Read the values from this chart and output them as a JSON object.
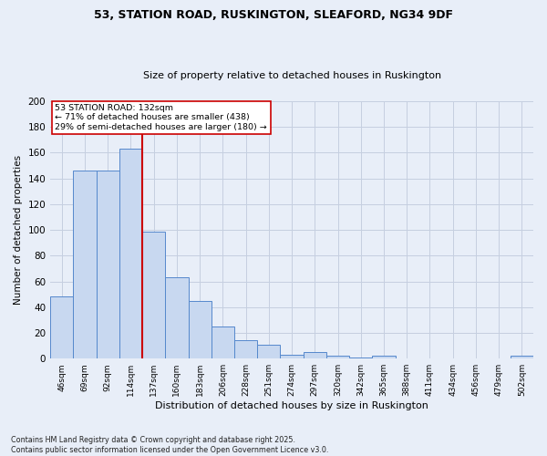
{
  "title_line1": "53, STATION ROAD, RUSKINGTON, SLEAFORD, NG34 9DF",
  "title_line2": "Size of property relative to detached houses in Ruskington",
  "xlabel": "Distribution of detached houses by size in Ruskington",
  "ylabel": "Number of detached properties",
  "bar_labels": [
    "46sqm",
    "69sqm",
    "92sqm",
    "114sqm",
    "137sqm",
    "160sqm",
    "183sqm",
    "206sqm",
    "228sqm",
    "251sqm",
    "274sqm",
    "297sqm",
    "320sqm",
    "342sqm",
    "365sqm",
    "388sqm",
    "411sqm",
    "434sqm",
    "456sqm",
    "479sqm",
    "502sqm"
  ],
  "bar_values": [
    48,
    146,
    146,
    163,
    99,
    63,
    45,
    25,
    14,
    11,
    3,
    5,
    2,
    1,
    2,
    0,
    0,
    0,
    0,
    0,
    2
  ],
  "bar_color": "#c8d8f0",
  "bar_edgecolor": "#5588cc",
  "red_line_x": 3.5,
  "annotation_title": "53 STATION ROAD: 132sqm",
  "annotation_line1": "← 71% of detached houses are smaller (438)",
  "annotation_line2": "29% of semi-detached houses are larger (180) →",
  "annotation_box_facecolor": "#ffffff",
  "annotation_box_edgecolor": "#cc0000",
  "red_line_color": "#cc0000",
  "ylim": [
    0,
    200
  ],
  "yticks": [
    0,
    20,
    40,
    60,
    80,
    100,
    120,
    140,
    160,
    180,
    200
  ],
  "footnote1": "Contains HM Land Registry data © Crown copyright and database right 2025.",
  "footnote2": "Contains public sector information licensed under the Open Government Licence v3.0.",
  "background_color": "#e8eef8",
  "grid_color": "#c5cfe0",
  "fig_width": 6.0,
  "fig_height": 5.0,
  "dpi": 100
}
